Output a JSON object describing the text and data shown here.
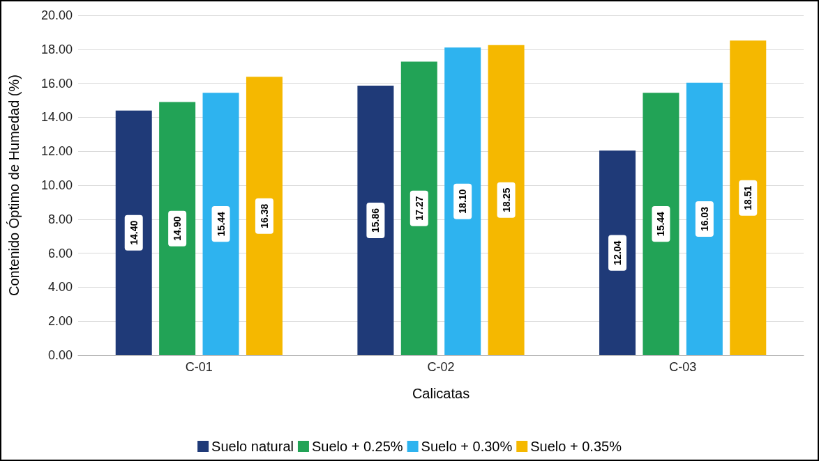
{
  "chart_data": {
    "type": "bar",
    "xlabel": "Calicatas",
    "ylabel": "Contenido Óptimo de Humedad (%)",
    "categories": [
      "C-01",
      "C-02",
      "C-03"
    ],
    "series": [
      {
        "name": "Suelo natural",
        "color": "#1f3a78",
        "values": [
          14.4,
          15.86,
          12.04
        ],
        "value_labels": [
          "14.40",
          "15.86",
          "12.04"
        ]
      },
      {
        "name": "Suelo + 0.25%",
        "color": "#22a356",
        "values": [
          14.9,
          17.27,
          15.44
        ],
        "value_labels": [
          "14.90",
          "17.27",
          "15.44"
        ]
      },
      {
        "name": "Suelo + 0.30%",
        "color": "#2eb3ef",
        "values": [
          15.44,
          18.1,
          16.03
        ],
        "value_labels": [
          "15.44",
          "18.10",
          "16.03"
        ]
      },
      {
        "name": "Suelo + 0.35%",
        "color": "#f5b800",
        "values": [
          16.38,
          18.25,
          18.51
        ],
        "value_labels": [
          "16.38",
          "18.25",
          "18.51"
        ]
      }
    ],
    "ylim": [
      0,
      20
    ],
    "yticks": [
      {
        "value": 0,
        "label": "0.00"
      },
      {
        "value": 2,
        "label": "2.00"
      },
      {
        "value": 4,
        "label": "4.00"
      },
      {
        "value": 6,
        "label": "6.00"
      },
      {
        "value": 8,
        "label": "8.00"
      },
      {
        "value": 10,
        "label": "10.00"
      },
      {
        "value": 12,
        "label": "12.00"
      },
      {
        "value": 14,
        "label": "14.00"
      },
      {
        "value": 16,
        "label": "16.00"
      },
      {
        "value": 18,
        "label": "18.00"
      },
      {
        "value": 20,
        "label": "20.00"
      }
    ],
    "grid": "y",
    "legend": "bottom"
  }
}
